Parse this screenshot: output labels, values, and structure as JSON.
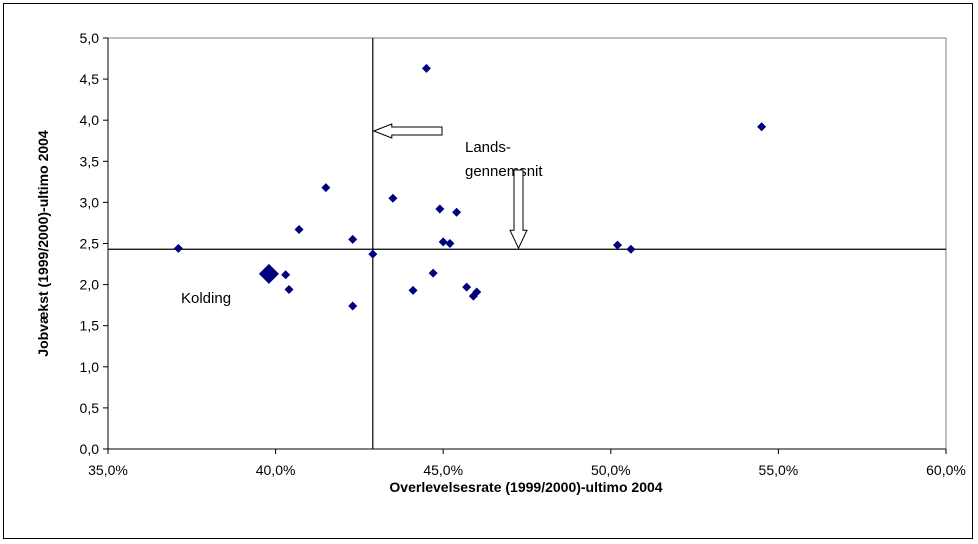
{
  "chart_data": {
    "type": "scatter",
    "title": "",
    "xlabel": "Overlevelsesrate (1999/2000)-ultimo 2004",
    "ylabel": "Jobvækst (1999/2000)-ultimo 2004",
    "xlim": [
      0.35,
      0.6
    ],
    "ylim": [
      0.0,
      5.0
    ],
    "grid": false,
    "legend": "none",
    "x_ticks": [
      {
        "value": 0.35,
        "label": "35,0%"
      },
      {
        "value": 0.4,
        "label": "40,0%"
      },
      {
        "value": 0.45,
        "label": "45,0%"
      },
      {
        "value": 0.5,
        "label": "50,0%"
      },
      {
        "value": 0.55,
        "label": "55,0%"
      },
      {
        "value": 0.6,
        "label": "60,0%"
      }
    ],
    "y_ticks": [
      {
        "value": 0.0,
        "label": "0,0"
      },
      {
        "value": 0.5,
        "label": "0,5"
      },
      {
        "value": 1.0,
        "label": "1,0"
      },
      {
        "value": 1.5,
        "label": "1,5"
      },
      {
        "value": 2.0,
        "label": "2,0"
      },
      {
        "value": 2.5,
        "label": "2,5"
      },
      {
        "value": 3.0,
        "label": "3,0"
      },
      {
        "value": 3.5,
        "label": "3,5"
      },
      {
        "value": 4.0,
        "label": "4,0"
      },
      {
        "value": 4.5,
        "label": "4,5"
      },
      {
        "value": 5.0,
        "label": "5,0"
      }
    ],
    "marker_color": "#00007f",
    "reference_lines": {
      "x": 0.429,
      "y": 2.43,
      "label_line1": "Lands-",
      "label_line2": "gennemsnit"
    },
    "highlight": {
      "label": "Kolding",
      "x": 0.398,
      "y": 2.13
    },
    "points": [
      {
        "x": 0.371,
        "y": 2.44
      },
      {
        "x": 0.403,
        "y": 2.12
      },
      {
        "x": 0.404,
        "y": 1.94
      },
      {
        "x": 0.407,
        "y": 2.67
      },
      {
        "x": 0.415,
        "y": 3.18
      },
      {
        "x": 0.423,
        "y": 2.55
      },
      {
        "x": 0.423,
        "y": 1.74
      },
      {
        "x": 0.429,
        "y": 2.37
      },
      {
        "x": 0.435,
        "y": 3.05
      },
      {
        "x": 0.441,
        "y": 1.93
      },
      {
        "x": 0.445,
        "y": 4.63
      },
      {
        "x": 0.447,
        "y": 2.14
      },
      {
        "x": 0.449,
        "y": 2.92
      },
      {
        "x": 0.45,
        "y": 2.52
      },
      {
        "x": 0.452,
        "y": 2.5
      },
      {
        "x": 0.454,
        "y": 2.88
      },
      {
        "x": 0.457,
        "y": 1.97
      },
      {
        "x": 0.459,
        "y": 1.86
      },
      {
        "x": 0.46,
        "y": 1.91
      },
      {
        "x": 0.502,
        "y": 2.48
      },
      {
        "x": 0.506,
        "y": 2.43
      },
      {
        "x": 0.545,
        "y": 3.92
      }
    ]
  }
}
